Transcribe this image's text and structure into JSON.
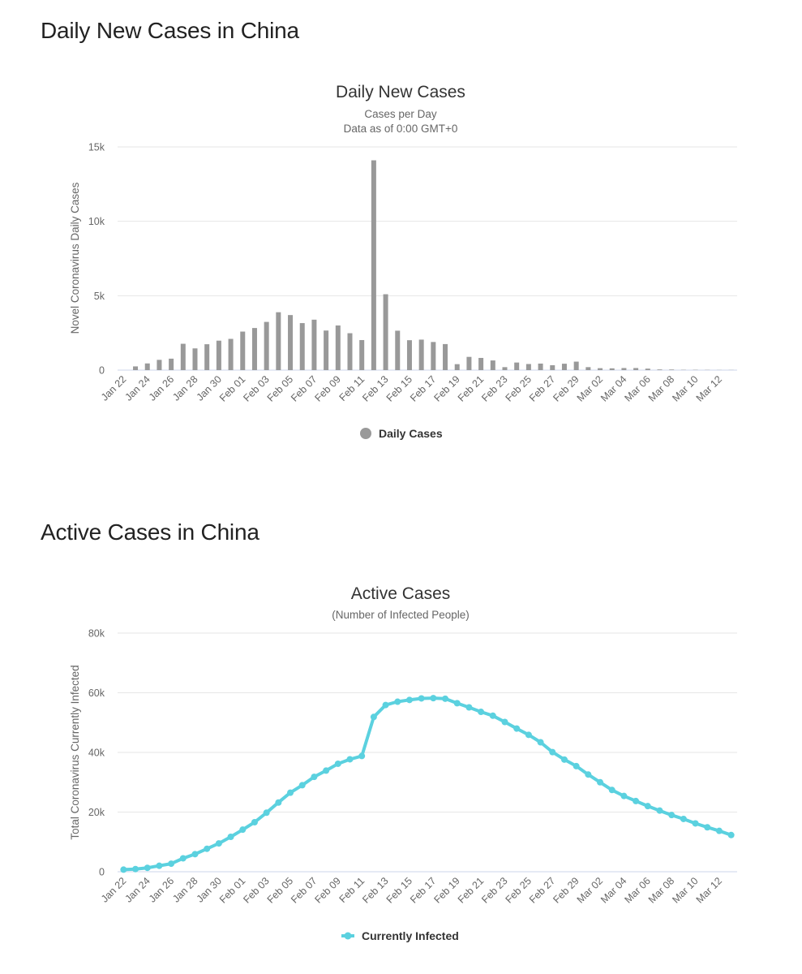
{
  "sections": {
    "daily_heading": "Daily New Cases in China",
    "active_heading": "Active Cases in China"
  },
  "colors": {
    "daily_bar": "#999999",
    "active_line": "#5bd1df"
  },
  "chart_data": [
    {
      "type": "bar",
      "title": "Daily New Cases",
      "subtitle_lines": [
        "Cases per Day",
        "Data as of 0:00 GMT+0"
      ],
      "ylabel": "Novel Coronavirus Daily Cases",
      "xlabel": "",
      "ylim": [
        0,
        15000
      ],
      "y_ticks": [
        0,
        5000,
        10000,
        15000
      ],
      "y_tick_labels": [
        "0",
        "5k",
        "10k",
        "15k"
      ],
      "grid": true,
      "legend_position": "bottom-center",
      "x_tick_labels": [
        "Jan 22",
        "Jan 24",
        "Jan 26",
        "Jan 28",
        "Jan 30",
        "Feb 01",
        "Feb 03",
        "Feb 05",
        "Feb 07",
        "Feb 09",
        "Feb 11",
        "Feb 13",
        "Feb 15",
        "Feb 17",
        "Feb 19",
        "Feb 21",
        "Feb 23",
        "Feb 25",
        "Feb 27",
        "Feb 29",
        "Mar 02",
        "Mar 04",
        "Mar 06",
        "Mar 08",
        "Mar 10",
        "Mar 12"
      ],
      "categories": [
        "Jan 22",
        "Jan 23",
        "Jan 24",
        "Jan 25",
        "Jan 26",
        "Jan 27",
        "Jan 28",
        "Jan 29",
        "Jan 30",
        "Jan 31",
        "Feb 01",
        "Feb 02",
        "Feb 03",
        "Feb 04",
        "Feb 05",
        "Feb 06",
        "Feb 07",
        "Feb 08",
        "Feb 09",
        "Feb 10",
        "Feb 11",
        "Feb 12",
        "Feb 13",
        "Feb 14",
        "Feb 15",
        "Feb 16",
        "Feb 17",
        "Feb 18",
        "Feb 19",
        "Feb 20",
        "Feb 21",
        "Feb 22",
        "Feb 23",
        "Feb 24",
        "Feb 25",
        "Feb 26",
        "Feb 27",
        "Feb 28",
        "Feb 29",
        "Mar 01",
        "Mar 02",
        "Mar 03",
        "Mar 04",
        "Mar 05",
        "Mar 06",
        "Mar 07",
        "Mar 08",
        "Mar 09",
        "Mar 10",
        "Mar 11",
        "Mar 12",
        "Mar 13"
      ],
      "series": [
        {
          "name": "Daily Cases",
          "values": [
            0,
            250,
            450,
            690,
            770,
            1770,
            1460,
            1740,
            1980,
            2100,
            2590,
            2830,
            3240,
            3890,
            3700,
            3160,
            3390,
            2660,
            3000,
            2480,
            2020,
            14100,
            5100,
            2650,
            2010,
            2050,
            1890,
            1750,
            400,
            890,
            820,
            650,
            200,
            510,
            410,
            440,
            330,
            430,
            570,
            200,
            130,
            120,
            140,
            140,
            100,
            45,
            40,
            20,
            20,
            15,
            10,
            10
          ]
        }
      ]
    },
    {
      "type": "line",
      "title": "Active Cases",
      "subtitle_lines": [
        "(Number of Infected People)"
      ],
      "ylabel": "Total Coronavirus Currently Infected",
      "xlabel": "",
      "ylim": [
        0,
        80000
      ],
      "y_ticks": [
        0,
        20000,
        40000,
        60000,
        80000
      ],
      "y_tick_labels": [
        "0",
        "20k",
        "40k",
        "60k",
        "80k"
      ],
      "grid": true,
      "legend_position": "bottom-center",
      "x_tick_labels": [
        "Jan 22",
        "Jan 24",
        "Jan 26",
        "Jan 28",
        "Jan 30",
        "Feb 01",
        "Feb 03",
        "Feb 05",
        "Feb 07",
        "Feb 09",
        "Feb 11",
        "Feb 13",
        "Feb 15",
        "Feb 17",
        "Feb 19",
        "Feb 21",
        "Feb 23",
        "Feb 25",
        "Feb 27",
        "Feb 29",
        "Mar 02",
        "Mar 04",
        "Mar 06",
        "Mar 08",
        "Mar 10",
        "Mar 12"
      ],
      "categories": [
        "Jan 22",
        "Jan 23",
        "Jan 24",
        "Jan 25",
        "Jan 26",
        "Jan 27",
        "Jan 28",
        "Jan 29",
        "Jan 30",
        "Jan 31",
        "Feb 01",
        "Feb 02",
        "Feb 03",
        "Feb 04",
        "Feb 05",
        "Feb 06",
        "Feb 07",
        "Feb 08",
        "Feb 09",
        "Feb 10",
        "Feb 11",
        "Feb 12",
        "Feb 13",
        "Feb 14",
        "Feb 15",
        "Feb 16",
        "Feb 17",
        "Feb 18",
        "Feb 19",
        "Feb 20",
        "Feb 21",
        "Feb 22",
        "Feb 23",
        "Feb 24",
        "Feb 25",
        "Feb 26",
        "Feb 27",
        "Feb 28",
        "Feb 29",
        "Mar 01",
        "Mar 02",
        "Mar 03",
        "Mar 04",
        "Mar 05",
        "Mar 06",
        "Mar 07",
        "Mar 08",
        "Mar 09",
        "Mar 10",
        "Mar 11",
        "Mar 12",
        "Mar 13"
      ],
      "series": [
        {
          "name": "Currently Infected",
          "values": [
            700,
            900,
            1300,
            2000,
            2700,
            4500,
            5900,
            7700,
            9500,
            11700,
            14100,
            16600,
            19800,
            23200,
            26500,
            29000,
            31800,
            33900,
            36200,
            37700,
            38800,
            51900,
            55900,
            57000,
            57600,
            58100,
            58200,
            58000,
            56500,
            55100,
            53600,
            52300,
            50200,
            48000,
            45900,
            43400,
            40100,
            37600,
            35400,
            32600,
            30000,
            27400,
            25400,
            23700,
            22000,
            20500,
            19000,
            17700,
            16200,
            14900,
            13700,
            12300
          ]
        }
      ]
    }
  ]
}
